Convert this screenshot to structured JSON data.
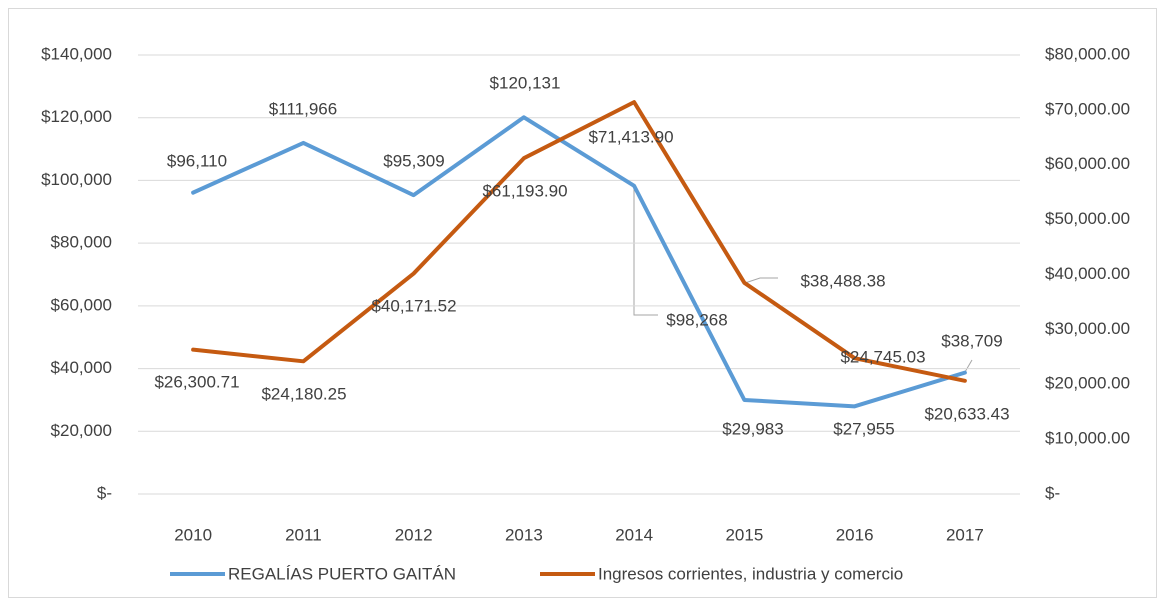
{
  "chart_data": {
    "type": "line",
    "categories": [
      "2010",
      "2011",
      "2012",
      "2013",
      "2014",
      "2015",
      "2016",
      "2017"
    ],
    "series": [
      {
        "name": "REGALÍAS PUERTO GAITÁN",
        "color": "#5b9bd5",
        "values": [
          96110,
          111966,
          95309,
          120131,
          98268,
          29983,
          27955,
          38709
        ],
        "value_labels": [
          "$96,110",
          "$111,966",
          "$95,309",
          "$120,131",
          "$98,268",
          "$29,983",
          "$27,955",
          "$38,709"
        ]
      },
      {
        "name": "Ingresos corrientes, industria y comercio",
        "color": "#c55a11",
        "axis": "y2",
        "values": [
          26300.71,
          24180.25,
          40171.52,
          61193.9,
          71413.9,
          38488.38,
          24745.03,
          20633.43
        ],
        "value_labels": [
          "$26,300.71",
          "$24,180.25",
          "$40,171.52",
          "$61,193.90",
          "$71,413.90",
          "$38,488.38",
          "$24,745.03",
          "$20,633.43"
        ]
      }
    ],
    "ylim": [
      0,
      140000
    ],
    "yticks": [
      {
        "value": 0,
        "label": "$-"
      },
      {
        "value": 20000,
        "label": "$20,000"
      },
      {
        "value": 40000,
        "label": "$40,000"
      },
      {
        "value": 60000,
        "label": "$60,000"
      },
      {
        "value": 80000,
        "label": "$80,000"
      },
      {
        "value": 100000,
        "label": "$100,000"
      },
      {
        "value": 120000,
        "label": "$120,000"
      },
      {
        "value": 140000,
        "label": "$140,000"
      }
    ],
    "y2lim": [
      0,
      80000
    ],
    "y2ticks": [
      {
        "value": 0,
        "label": "$-"
      },
      {
        "value": 10000,
        "label": "$10,000.00"
      },
      {
        "value": 20000,
        "label": "$20,000.00"
      },
      {
        "value": 30000,
        "label": "$30,000.00"
      },
      {
        "value": 40000,
        "label": "$40,000.00"
      },
      {
        "value": 50000,
        "label": "$50,000.00"
      },
      {
        "value": 60000,
        "label": "$60,000.00"
      },
      {
        "value": 70000,
        "label": "$70,000.00"
      },
      {
        "value": 80000,
        "label": "$80,000.00"
      }
    ],
    "grid": true,
    "legend": "bottom"
  }
}
